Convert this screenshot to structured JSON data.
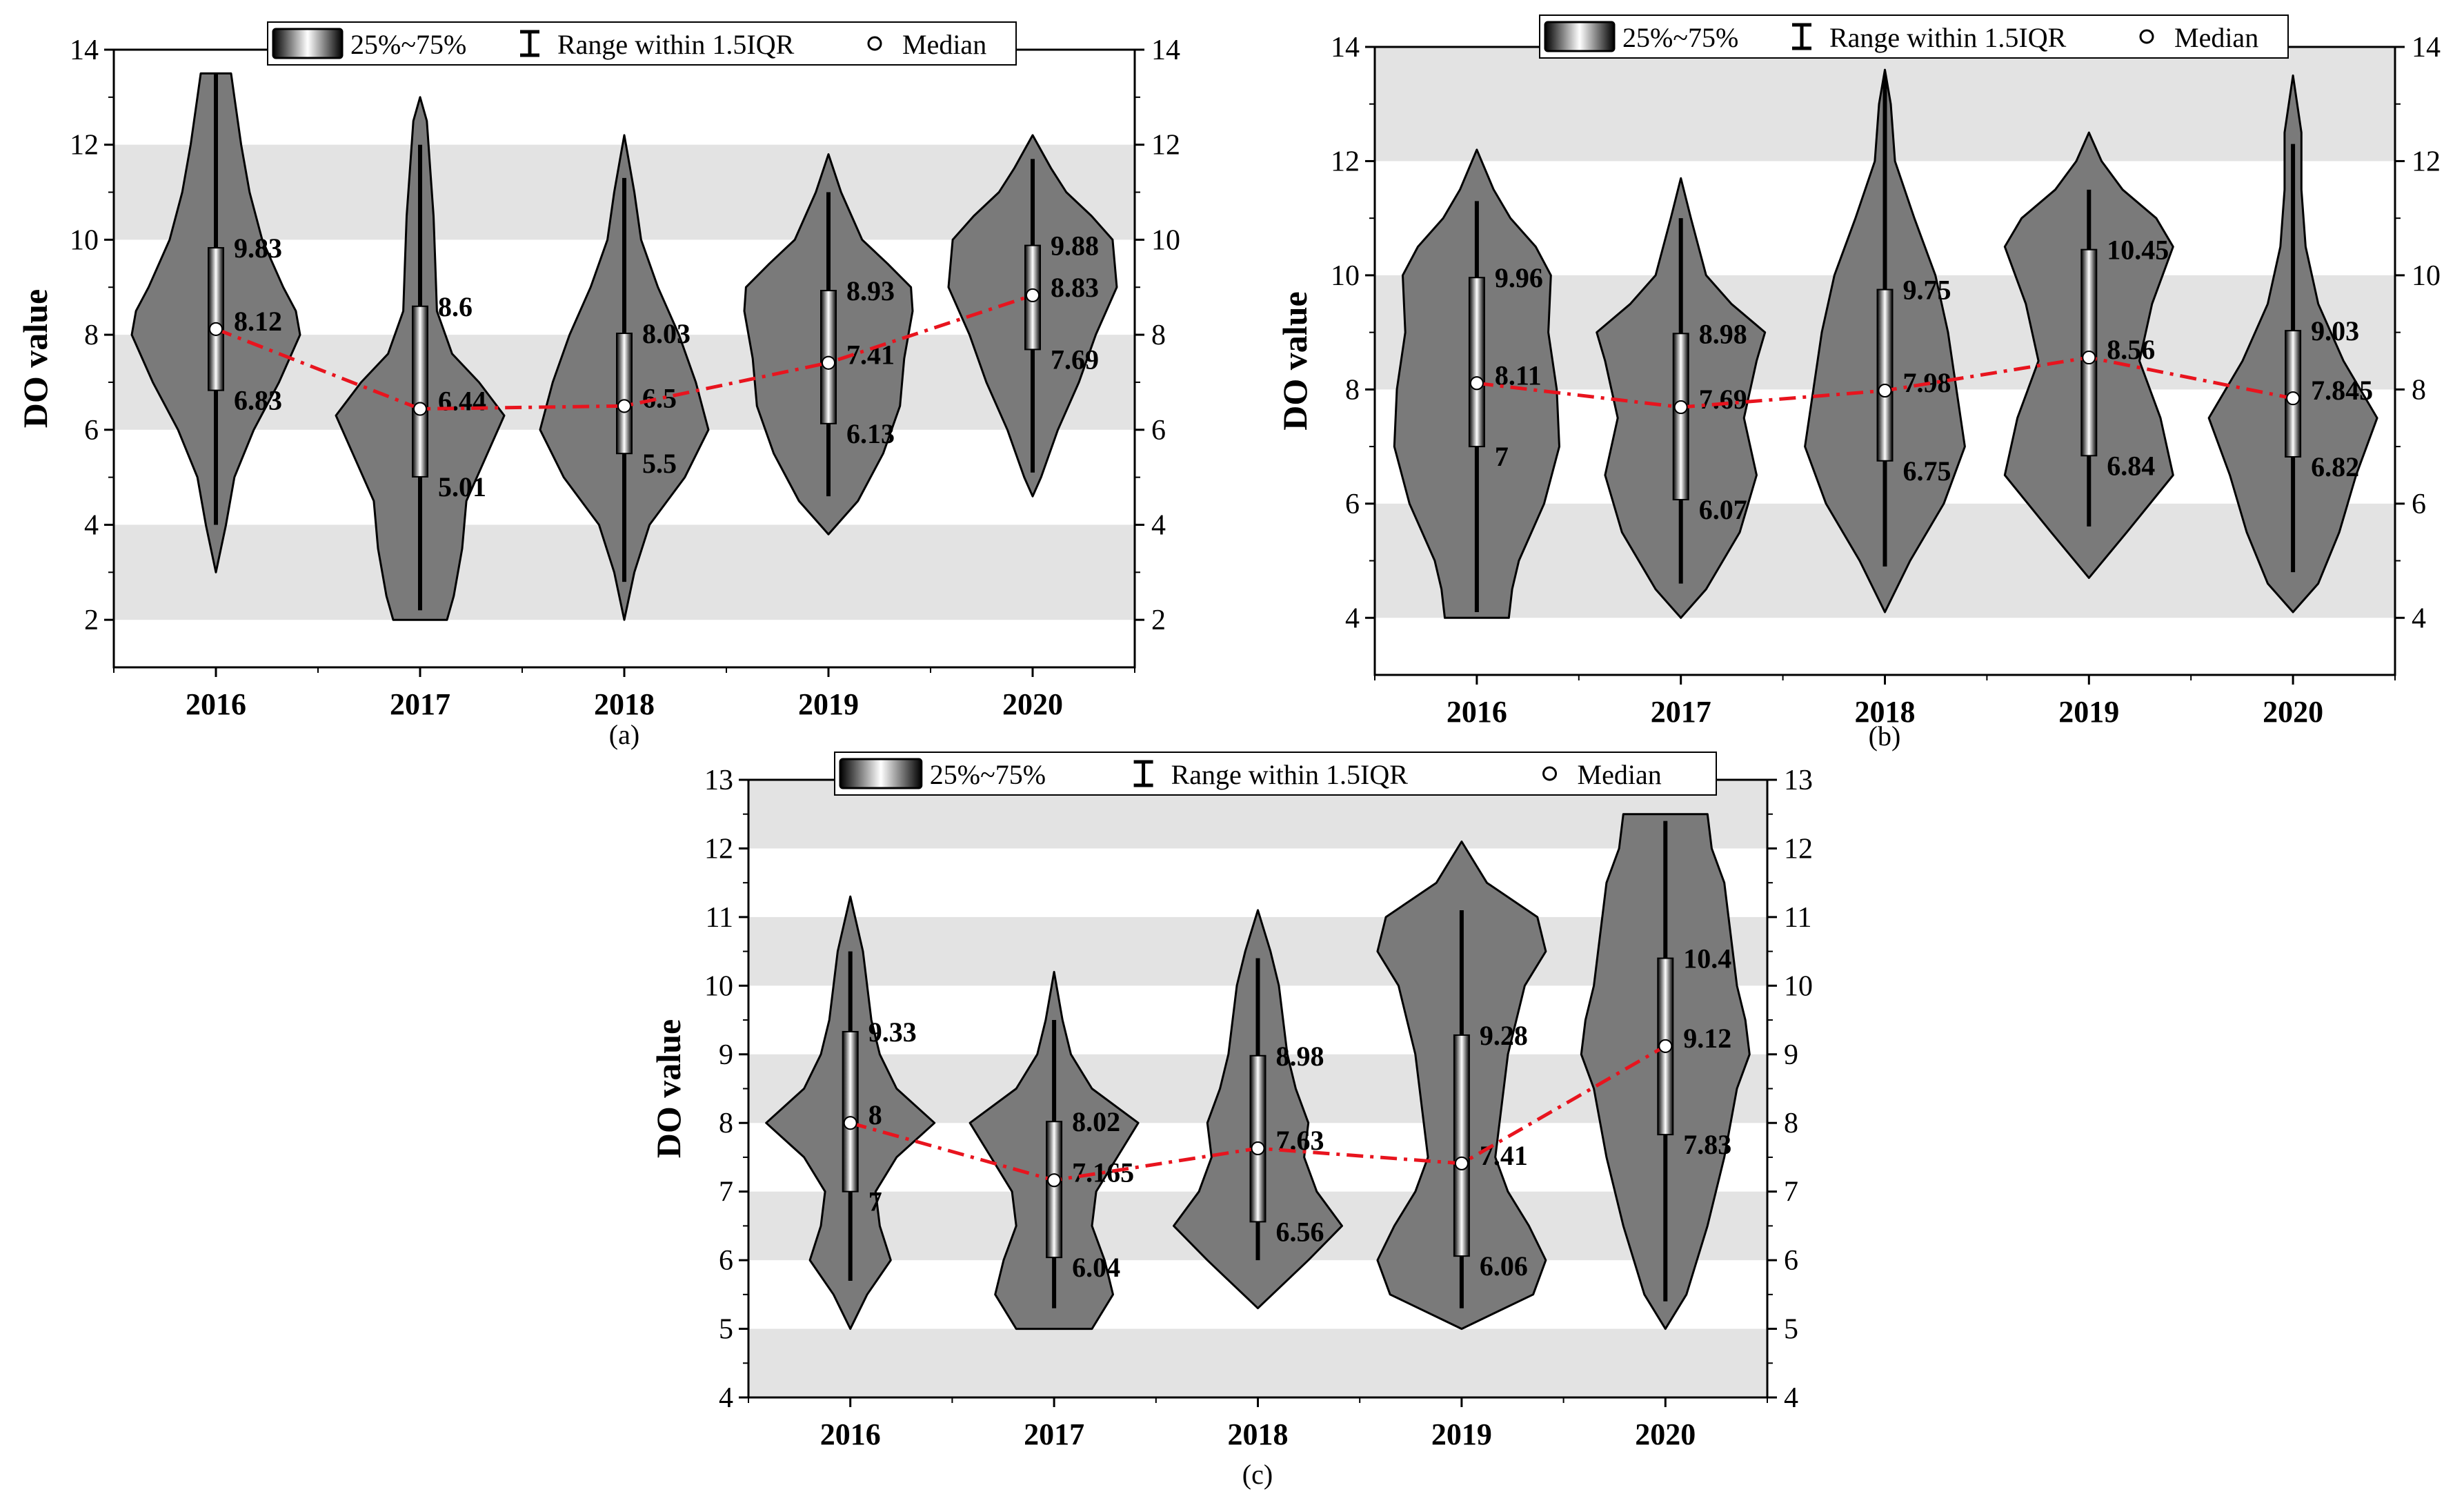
{
  "legend": {
    "box_label": "25%~75%",
    "range_label": "Range within 1.5IQR",
    "median_label": "Median"
  },
  "colors": {
    "violin_fill": "#7a7a7a",
    "band": "#e3e3e3",
    "trend_line": "#e8141e",
    "median_marker": "#ffffff"
  },
  "chart_data": [
    {
      "type": "violin",
      "panel": "(a)",
      "ylabel": "DO value",
      "ylim": [
        1,
        14
      ],
      "yticks": [
        2,
        4,
        6,
        8,
        10,
        12,
        14
      ],
      "bands": [
        [
          2,
          4
        ],
        [
          6,
          8
        ],
        [
          10,
          12
        ]
      ],
      "categories": [
        "2016",
        "2017",
        "2018",
        "2019",
        "2020"
      ],
      "series": [
        {
          "category": "2016",
          "q1": 6.83,
          "median": 8.12,
          "q3": 9.83,
          "whisker_low": 4.0,
          "whisker_high": 13.5,
          "min": 3.0,
          "max": 13.5,
          "q1_label": "6.83",
          "median_label": "8.12",
          "q3_label": "9.83",
          "profile": [
            [
              3.0,
              0.0
            ],
            [
              4.0,
              0.12
            ],
            [
              5.0,
              0.22
            ],
            [
              6.0,
              0.45
            ],
            [
              7.0,
              0.75
            ],
            [
              8.0,
              1.0
            ],
            [
              8.5,
              0.95
            ],
            [
              9.0,
              0.8
            ],
            [
              10.0,
              0.55
            ],
            [
              11.0,
              0.4
            ],
            [
              12.0,
              0.3
            ],
            [
              13.0,
              0.22
            ],
            [
              13.5,
              0.18
            ]
          ]
        },
        {
          "category": "2017",
          "q1": 5.01,
          "median": 6.44,
          "q3": 8.6,
          "whisker_low": 2.2,
          "whisker_high": 12.0,
          "min": 2.0,
          "max": 13.0,
          "q1_label": "5.01",
          "median_label": "6.44",
          "q3_label": "8.6",
          "profile": [
            [
              2.0,
              0.32
            ],
            [
              2.5,
              0.4
            ],
            [
              3.5,
              0.5
            ],
            [
              4.5,
              0.55
            ],
            [
              5.5,
              0.8
            ],
            [
              6.3,
              1.0
            ],
            [
              7.0,
              0.7
            ],
            [
              7.6,
              0.38
            ],
            [
              8.5,
              0.2
            ],
            [
              9.5,
              0.18
            ],
            [
              10.5,
              0.16
            ],
            [
              11.5,
              0.12
            ],
            [
              12.5,
              0.08
            ],
            [
              13.0,
              0.0
            ]
          ]
        },
        {
          "category": "2018",
          "q1": 5.5,
          "median": 6.5,
          "q3": 8.03,
          "whisker_low": 2.8,
          "whisker_high": 11.3,
          "min": 2.0,
          "max": 12.2,
          "q1_label": "5.5",
          "median_label": "6.5",
          "q3_label": "8.03",
          "profile": [
            [
              2.0,
              0.0
            ],
            [
              3.0,
              0.12
            ],
            [
              4.0,
              0.3
            ],
            [
              5.0,
              0.72
            ],
            [
              6.0,
              1.0
            ],
            [
              7.0,
              0.85
            ],
            [
              8.0,
              0.65
            ],
            [
              9.0,
              0.4
            ],
            [
              10.0,
              0.2
            ],
            [
              11.0,
              0.12
            ],
            [
              12.2,
              0.0
            ]
          ]
        },
        {
          "category": "2019",
          "q1": 6.13,
          "median": 7.41,
          "q3": 8.93,
          "whisker_low": 4.6,
          "whisker_high": 11.0,
          "min": 3.8,
          "max": 11.8,
          "q1_label": "6.13",
          "median_label": "7.41",
          "q3_label": "8.93",
          "profile": [
            [
              3.8,
              0.0
            ],
            [
              4.5,
              0.35
            ],
            [
              5.5,
              0.65
            ],
            [
              6.5,
              0.85
            ],
            [
              7.5,
              0.9
            ],
            [
              8.5,
              1.0
            ],
            [
              9.0,
              0.98
            ],
            [
              9.5,
              0.7
            ],
            [
              10.0,
              0.4
            ],
            [
              11.0,
              0.15
            ],
            [
              11.8,
              0.0
            ]
          ]
        },
        {
          "category": "2020",
          "q1": 7.69,
          "median": 8.83,
          "q3": 9.88,
          "whisker_low": 5.1,
          "whisker_high": 11.7,
          "min": 4.6,
          "max": 12.2,
          "q1_label": "7.69",
          "median_label": "8.83",
          "q3_label": "9.88",
          "profile": [
            [
              4.6,
              0.0
            ],
            [
              5.0,
              0.1
            ],
            [
              6.0,
              0.3
            ],
            [
              7.0,
              0.55
            ],
            [
              8.0,
              0.75
            ],
            [
              9.0,
              1.0
            ],
            [
              10.0,
              0.95
            ],
            [
              10.5,
              0.7
            ],
            [
              11.0,
              0.4
            ],
            [
              11.5,
              0.22
            ],
            [
              12.2,
              0.0
            ]
          ]
        }
      ]
    },
    {
      "type": "violin",
      "panel": "(b)",
      "ylabel": "DO value",
      "ylim": [
        3,
        14
      ],
      "yticks": [
        4,
        6,
        8,
        10,
        12,
        14
      ],
      "bands": [
        [
          4,
          6
        ],
        [
          8,
          10
        ],
        [
          12,
          14
        ]
      ],
      "categories": [
        "2016",
        "2017",
        "2018",
        "2019",
        "2020"
      ],
      "series": [
        {
          "category": "2016",
          "q1": 7.0,
          "median": 8.11,
          "q3": 9.96,
          "whisker_low": 4.1,
          "whisker_high": 11.3,
          "min": 4.0,
          "max": 12.2,
          "q1_label": "7",
          "median_label": "8.11",
          "q3_label": "9.96",
          "profile": [
            [
              4.0,
              0.38
            ],
            [
              4.5,
              0.42
            ],
            [
              5.0,
              0.5
            ],
            [
              6.0,
              0.8
            ],
            [
              7.0,
              0.98
            ],
            [
              8.0,
              0.95
            ],
            [
              9.0,
              0.85
            ],
            [
              10.0,
              0.88
            ],
            [
              10.5,
              0.7
            ],
            [
              11.0,
              0.4
            ],
            [
              11.5,
              0.2
            ],
            [
              12.2,
              0.0
            ]
          ]
        },
        {
          "category": "2017",
          "q1": 6.07,
          "median": 7.69,
          "q3": 8.98,
          "whisker_low": 4.6,
          "whisker_high": 11.0,
          "min": 4.0,
          "max": 11.7,
          "q1_label": "6.07",
          "median_label": "7.69",
          "q3_label": "8.98",
          "profile": [
            [
              4.0,
              0.0
            ],
            [
              4.5,
              0.3
            ],
            [
              5.5,
              0.7
            ],
            [
              6.5,
              0.9
            ],
            [
              7.5,
              0.75
            ],
            [
              8.5,
              0.9
            ],
            [
              9.0,
              1.0
            ],
            [
              9.5,
              0.6
            ],
            [
              10.0,
              0.3
            ],
            [
              11.0,
              0.12
            ],
            [
              11.7,
              0.0
            ]
          ]
        },
        {
          "category": "2018",
          "q1": 6.75,
          "median": 7.98,
          "q3": 9.75,
          "whisker_low": 4.9,
          "whisker_high": 13.5,
          "min": 4.1,
          "max": 13.6,
          "q1_label": "6.75",
          "median_label": "7.98",
          "q3_label": "9.75",
          "profile": [
            [
              4.1,
              0.0
            ],
            [
              5.0,
              0.3
            ],
            [
              6.0,
              0.7
            ],
            [
              7.0,
              0.95
            ],
            [
              8.0,
              0.85
            ],
            [
              9.0,
              0.75
            ],
            [
              10.0,
              0.6
            ],
            [
              11.0,
              0.35
            ],
            [
              12.0,
              0.12
            ],
            [
              13.0,
              0.07
            ],
            [
              13.6,
              0.0
            ]
          ]
        },
        {
          "category": "2019",
          "q1": 6.84,
          "median": 8.56,
          "q3": 10.45,
          "whisker_low": 5.6,
          "whisker_high": 11.5,
          "min": 4.7,
          "max": 12.5,
          "q1_label": "6.84",
          "median_label": "8.56",
          "q3_label": "10.45",
          "profile": [
            [
              4.7,
              0.0
            ],
            [
              5.5,
              0.45
            ],
            [
              6.5,
              1.0
            ],
            [
              7.5,
              0.85
            ],
            [
              8.5,
              0.6
            ],
            [
              9.5,
              0.75
            ],
            [
              10.5,
              1.0
            ],
            [
              11.0,
              0.8
            ],
            [
              11.5,
              0.4
            ],
            [
              12.0,
              0.15
            ],
            [
              12.5,
              0.0
            ]
          ]
        },
        {
          "category": "2020",
          "q1": 6.82,
          "median": 7.845,
          "q3": 9.03,
          "whisker_low": 4.8,
          "whisker_high": 12.3,
          "min": 4.1,
          "max": 13.5,
          "q1_label": "6.82",
          "median_label": "7.845",
          "q3_label": "9.03",
          "profile": [
            [
              4.1,
              0.0
            ],
            [
              4.6,
              0.3
            ],
            [
              5.5,
              0.55
            ],
            [
              6.5,
              0.75
            ],
            [
              7.5,
              1.0
            ],
            [
              8.5,
              0.6
            ],
            [
              9.5,
              0.3
            ],
            [
              10.5,
              0.15
            ],
            [
              11.5,
              0.1
            ],
            [
              12.5,
              0.1
            ],
            [
              13.5,
              0.0
            ]
          ]
        }
      ]
    },
    {
      "type": "violin",
      "panel": "(c)",
      "ylabel": "DO value",
      "ylim": [
        4,
        13
      ],
      "yticks": [
        4,
        5,
        6,
        7,
        8,
        9,
        10,
        11,
        12,
        13
      ],
      "bands": [
        [
          4,
          5
        ],
        [
          6,
          7
        ],
        [
          8,
          9
        ],
        [
          10,
          11
        ],
        [
          12,
          13
        ]
      ],
      "categories": [
        "2016",
        "2017",
        "2018",
        "2019",
        "2020"
      ],
      "series": [
        {
          "category": "2016",
          "q1": 7.0,
          "median": 8.0,
          "q3": 9.33,
          "whisker_low": 5.7,
          "whisker_high": 10.5,
          "min": 5.0,
          "max": 11.3,
          "q1_label": "7",
          "median_label": "8",
          "q3_label": "9.33",
          "profile": [
            [
              5.0,
              0.0
            ],
            [
              5.5,
              0.2
            ],
            [
              6.0,
              0.48
            ],
            [
              6.5,
              0.35
            ],
            [
              7.0,
              0.3
            ],
            [
              7.5,
              0.55
            ],
            [
              8.0,
              1.0
            ],
            [
              8.5,
              0.55
            ],
            [
              9.0,
              0.35
            ],
            [
              9.5,
              0.25
            ],
            [
              10.0,
              0.2
            ],
            [
              10.5,
              0.15
            ],
            [
              11.3,
              0.0
            ]
          ]
        },
        {
          "category": "2017",
          "q1": 6.04,
          "median": 7.165,
          "q3": 8.02,
          "whisker_low": 5.3,
          "whisker_high": 9.5,
          "min": 5.0,
          "max": 10.2,
          "q1_label": "6.04",
          "median_label": "7.165",
          "q3_label": "8.02",
          "profile": [
            [
              5.0,
              0.45
            ],
            [
              5.5,
              0.7
            ],
            [
              6.0,
              0.6
            ],
            [
              6.5,
              0.45
            ],
            [
              7.0,
              0.5
            ],
            [
              7.5,
              0.75
            ],
            [
              8.0,
              1.0
            ],
            [
              8.5,
              0.45
            ],
            [
              9.0,
              0.2
            ],
            [
              9.5,
              0.1
            ],
            [
              10.2,
              0.0
            ]
          ]
        },
        {
          "category": "2018",
          "q1": 6.56,
          "median": 7.63,
          "q3": 8.98,
          "whisker_low": 6.0,
          "whisker_high": 10.4,
          "min": 5.3,
          "max": 11.1,
          "q1_label": "6.56",
          "median_label": "7.63",
          "q3_label": "8.98",
          "profile": [
            [
              5.3,
              0.0
            ],
            [
              6.0,
              0.6
            ],
            [
              6.5,
              1.0
            ],
            [
              7.0,
              0.7
            ],
            [
              7.5,
              0.55
            ],
            [
              8.0,
              0.6
            ],
            [
              8.5,
              0.45
            ],
            [
              9.0,
              0.35
            ],
            [
              9.5,
              0.3
            ],
            [
              10.0,
              0.25
            ],
            [
              10.5,
              0.15
            ],
            [
              11.1,
              0.0
            ]
          ]
        },
        {
          "category": "2019",
          "q1": 6.06,
          "median": 7.41,
          "q3": 9.28,
          "whisker_low": 5.3,
          "whisker_high": 11.1,
          "min": 5.0,
          "max": 12.1,
          "q1_label": "6.06",
          "median_label": "7.41",
          "q3_label": "9.28",
          "profile": [
            [
              5.0,
              0.0
            ],
            [
              5.5,
              0.85
            ],
            [
              6.0,
              1.0
            ],
            [
              6.5,
              0.8
            ],
            [
              7.0,
              0.55
            ],
            [
              7.5,
              0.4
            ],
            [
              8.0,
              0.45
            ],
            [
              8.5,
              0.5
            ],
            [
              9.0,
              0.55
            ],
            [
              9.5,
              0.65
            ],
            [
              10.0,
              0.75
            ],
            [
              10.5,
              1.0
            ],
            [
              11.0,
              0.9
            ],
            [
              11.5,
              0.3
            ],
            [
              12.1,
              0.0
            ]
          ]
        },
        {
          "category": "2020",
          "q1": 7.83,
          "median": 9.12,
          "q3": 10.4,
          "whisker_low": 5.4,
          "whisker_high": 12.4,
          "min": 5.0,
          "max": 12.5,
          "q1_label": "7.83",
          "median_label": "9.12",
          "q3_label": "10.4",
          "profile": [
            [
              5.0,
              0.0
            ],
            [
              5.5,
              0.25
            ],
            [
              6.5,
              0.5
            ],
            [
              7.5,
              0.7
            ],
            [
              8.5,
              0.85
            ],
            [
              9.0,
              1.0
            ],
            [
              9.5,
              0.95
            ],
            [
              10.0,
              0.85
            ],
            [
              10.5,
              0.8
            ],
            [
              11.0,
              0.75
            ],
            [
              11.5,
              0.7
            ],
            [
              12.0,
              0.55
            ],
            [
              12.5,
              0.5
            ]
          ]
        }
      ]
    }
  ]
}
